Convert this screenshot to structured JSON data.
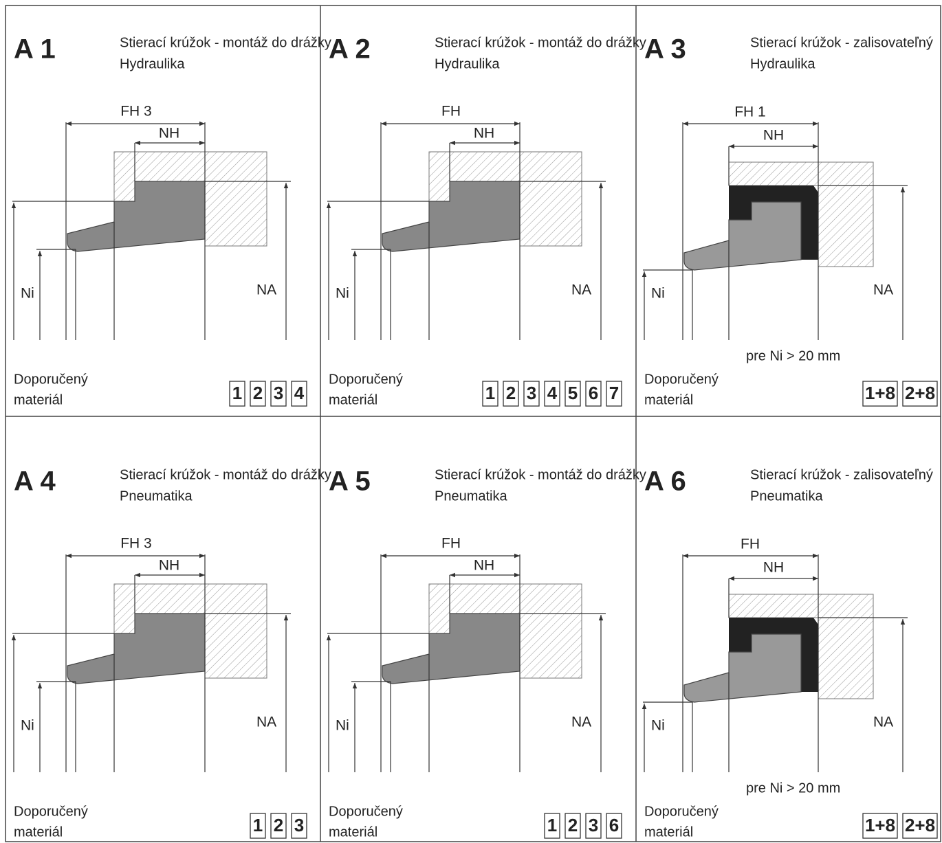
{
  "panels": [
    {
      "code": "A 1",
      "title": "Stierací krúžok - montáž do drážky",
      "subtitle": "Hydraulika",
      "fh": "FH 3",
      "nh": "NH",
      "ni": "Ni",
      "na": "NA",
      "material_label": [
        "Doporučený",
        "materiál"
      ],
      "materials": [
        "1",
        "2",
        "3",
        "4"
      ]
    },
    {
      "code": "A 2",
      "title": "Stierací krúžok - montáž do drážky",
      "subtitle": "Hydraulika",
      "fh": "FH",
      "nh": "NH",
      "ni": "Ni",
      "na": "NA",
      "material_label": [
        "Doporučený",
        "materiál"
      ],
      "materials": [
        "1",
        "2",
        "3",
        "4",
        "5",
        "6",
        "7"
      ]
    },
    {
      "code": "A 3",
      "title": "Stierací krúžok - zalisovateľný",
      "subtitle": "Hydraulika",
      "fh": "FH 1",
      "nh": "NH",
      "ni": "Ni",
      "na": "NA",
      "note": "pre Ni > 20 mm",
      "material_label": [
        "Doporučený",
        "materiál"
      ],
      "materials": [
        "1+8",
        "2+8"
      ]
    },
    {
      "code": "A 4",
      "title": "Stierací krúžok - montáž do drážky",
      "subtitle": "Pneumatika",
      "fh": "FH 3",
      "nh": "NH",
      "ni": "Ni",
      "na": "NA",
      "material_label": [
        "Doporučený",
        "materiál"
      ],
      "materials": [
        "1",
        "2",
        "3"
      ]
    },
    {
      "code": "A 5",
      "title": "Stierací krúžok - montáž do drážky",
      "subtitle": "Pneumatika",
      "fh": "FH",
      "nh": "NH",
      "ni": "Ni",
      "na": "NA",
      "material_label": [
        "Doporučený",
        "materiál"
      ],
      "materials": [
        "1",
        "2",
        "3",
        "6"
      ]
    },
    {
      "code": "A 6",
      "title": "Stierací krúžok - zalisovateľný",
      "subtitle": "Pneumatika",
      "fh": "FH",
      "nh": "NH",
      "ni": "Ni",
      "na": "NA",
      "note": "pre Ni > 20 mm",
      "material_label": [
        "Doporučený",
        "materiál"
      ],
      "materials": [
        "1+8",
        "2+8"
      ]
    }
  ]
}
